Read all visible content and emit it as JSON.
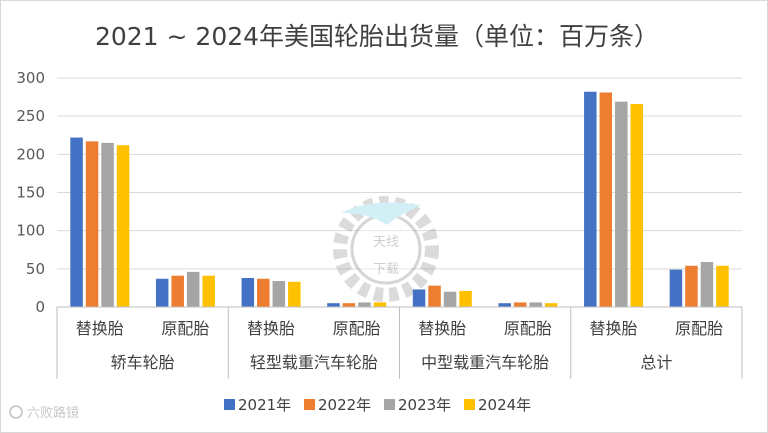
{
  "colors": {
    "series": [
      "#4472C4",
      "#ED7D31",
      "#A5A5A5",
      "#FFC000"
    ],
    "grid": "#d9d9d9",
    "axis": "#bfbfbf",
    "text": "#595959"
  },
  "watermark": {
    "text": "六败路镜",
    "icon": "gear-badge-icon",
    "badge_text": "天线下载"
  },
  "chart_data": {
    "type": "bar",
    "title": "2021 ~ 2024年美国轮胎出货量（单位：百万条）",
    "ylim": [
      0,
      300
    ],
    "yticks": [
      0,
      50,
      100,
      150,
      200,
      250,
      300
    ],
    "grid": true,
    "legend_position": "bottom",
    "groups": [
      {
        "label": "轿车轮胎",
        "categories": [
          "替换胎",
          "原配胎"
        ]
      },
      {
        "label": "轻型载重汽车轮胎",
        "categories": [
          "替换胎",
          "原配胎"
        ]
      },
      {
        "label": "中型载重汽车轮胎",
        "categories": [
          "替换胎",
          "原配胎"
        ]
      },
      {
        "label": "总计",
        "categories": [
          "替换胎",
          "原配胎"
        ]
      }
    ],
    "series": [
      {
        "name": "2021年",
        "values": [
          222,
          37,
          38,
          5,
          23,
          5,
          282,
          49
        ]
      },
      {
        "name": "2022年",
        "values": [
          217,
          41,
          37,
          5,
          28,
          6,
          281,
          54
        ]
      },
      {
        "name": "2023年",
        "values": [
          215,
          46,
          34,
          6,
          20,
          6,
          269,
          59
        ]
      },
      {
        "name": "2024年",
        "values": [
          212,
          41,
          33,
          6,
          21,
          5,
          266,
          54
        ]
      }
    ]
  }
}
